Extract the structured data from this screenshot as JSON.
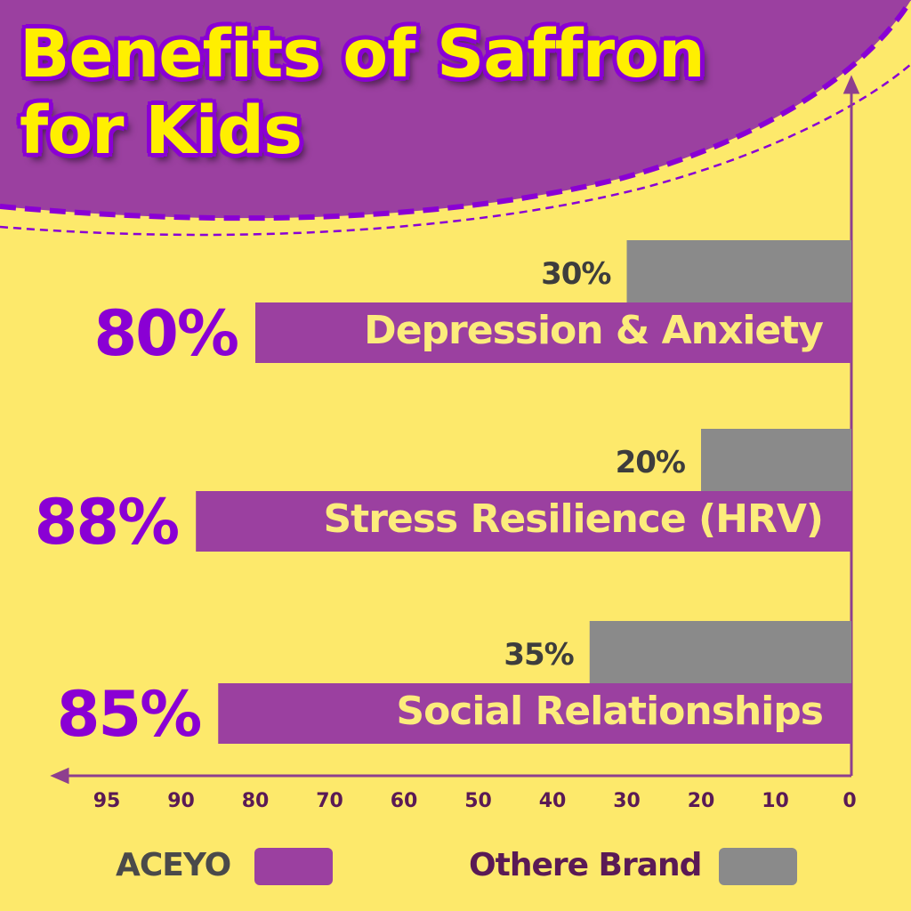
{
  "chart_data": {
    "type": "bar",
    "orientation": "horizontal",
    "title": "Benefits of Saffron for Kids",
    "categories": [
      "Depression & Anxiety",
      "Stress Resilience (HRV)",
      "Social Relationships"
    ],
    "series": [
      {
        "name": "ACEYO",
        "color": "#9b40a0",
        "values": [
          80,
          88,
          85
        ],
        "labels": [
          "80%",
          "88%",
          "85%"
        ]
      },
      {
        "name": "Othere Brand",
        "color": "#8a8a8a",
        "values": [
          30,
          20,
          35
        ],
        "labels": [
          "30%",
          "20%",
          "35%"
        ]
      }
    ],
    "x_ticks": [
      "95",
      "90",
      "80",
      "70",
      "60",
      "50",
      "40",
      "30",
      "20",
      "10",
      "0"
    ],
    "x_direction": "right-to-left",
    "grid": false,
    "legend_placement": "bottom"
  },
  "colors": {
    "background": "#fde96b",
    "header": "#9b40a0",
    "title_text": "#ffef00",
    "title_outline": "#8a00d4"
  }
}
